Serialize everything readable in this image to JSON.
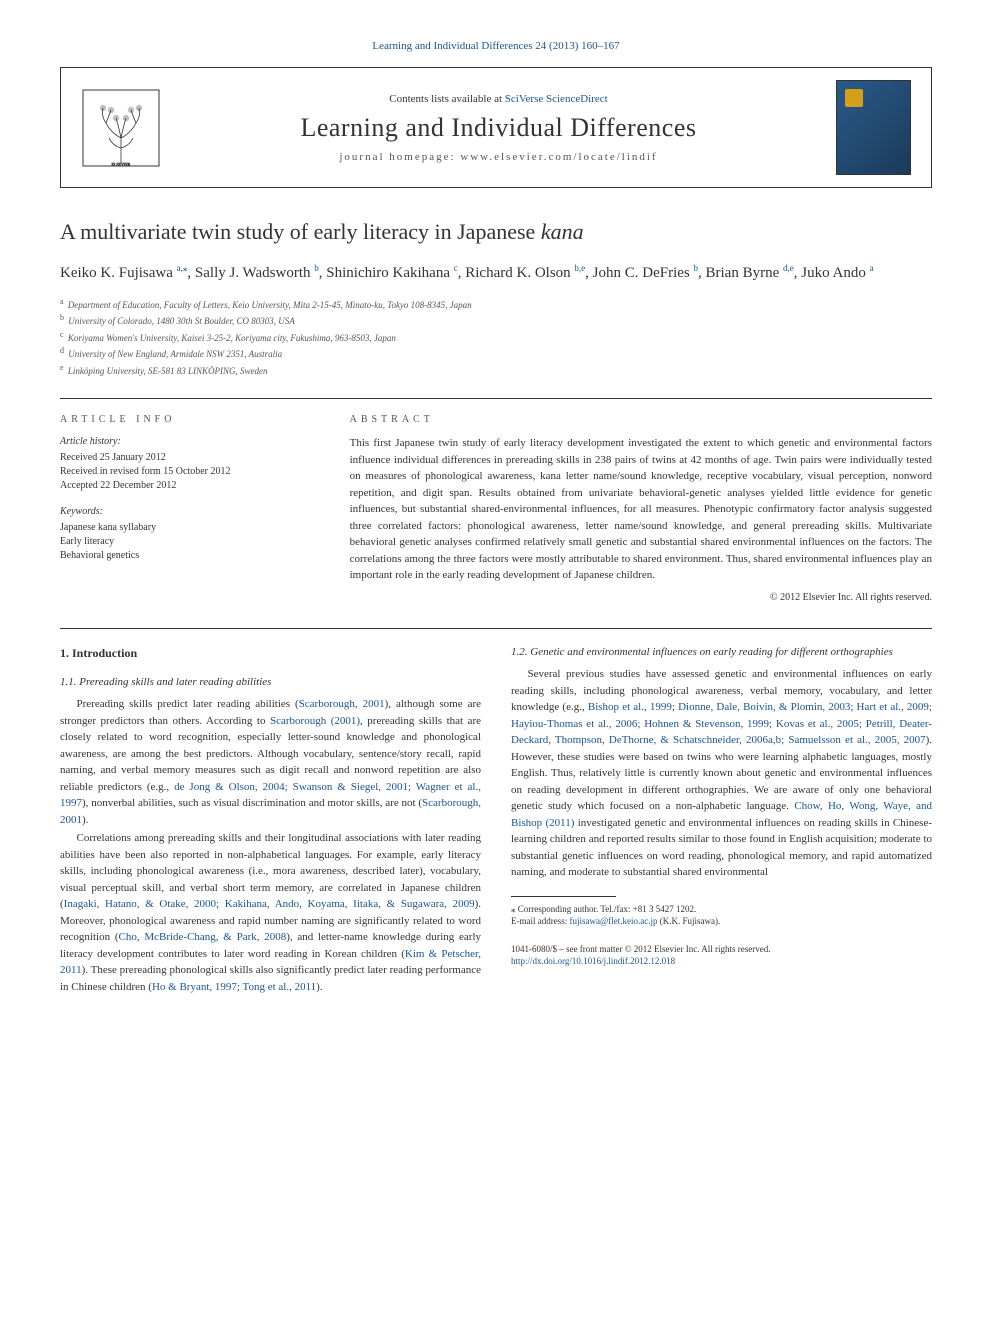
{
  "top_link": "Learning and Individual Differences 24 (2013) 160–167",
  "header": {
    "contents_line_prefix": "Contents lists available at ",
    "sd_link": "SciVerse ScienceDirect",
    "journal_name": "Learning and Individual Differences",
    "homepage_prefix": "journal homepage: ",
    "homepage_url": "www.elsevier.com/locate/lindif"
  },
  "title_prefix": "A multivariate twin study of early literacy in Japanese ",
  "title_italic": "kana",
  "authors": [
    {
      "name": "Keiko K. Fujisawa",
      "aff": "a",
      "corr": true
    },
    {
      "name": "Sally J. Wadsworth",
      "aff": "b"
    },
    {
      "name": "Shinichiro Kakihana",
      "aff": "c"
    },
    {
      "name": "Richard K. Olson",
      "aff": "b,e"
    },
    {
      "name": "John C. DeFries",
      "aff": "b"
    },
    {
      "name": "Brian Byrne",
      "aff": "d,e"
    },
    {
      "name": "Juko Ando",
      "aff": "a"
    }
  ],
  "affiliations": [
    {
      "label": "a",
      "text": "Department of Education, Faculty of Letters, Keio University, Mita 2-15-45, Minato-ku, Tokyo 108-8345, Japan"
    },
    {
      "label": "b",
      "text": "University of Colorado, 1480 30th St Boulder, CO 80303, USA"
    },
    {
      "label": "c",
      "text": "Koriyama Women's University, Kaisei 3-25-2, Koriyama city, Fukushima, 963-8503, Japan"
    },
    {
      "label": "d",
      "text": "University of New England, Armidale NSW 2351, Australia"
    },
    {
      "label": "e",
      "text": "Linköping University, SE-581 83 LINKÖPING, Sweden"
    }
  ],
  "info": {
    "heading": "ARTICLE INFO",
    "history_head": "Article history:",
    "history": [
      "Received 25 January 2012",
      "Received in revised form 15 October 2012",
      "Accepted 22 December 2012"
    ],
    "keywords_head": "Keywords:",
    "keywords": [
      "Japanese kana syllabary",
      "Early literacy",
      "Behavioral genetics"
    ]
  },
  "abstract": {
    "heading": "ABSTRACT",
    "text": "This first Japanese twin study of early literacy development investigated the extent to which genetic and environmental factors influence individual differences in prereading skills in 238 pairs of twins at 42 months of age. Twin pairs were individually tested on measures of phonological awareness, kana letter name/sound knowledge, receptive vocabulary, visual perception, nonword repetition, and digit span. Results obtained from univariate behavioral-genetic analyses yielded little evidence for genetic influences, but substantial shared-environmental influences, for all measures. Phenotypic confirmatory factor analysis suggested three correlated factors: phonological awareness, letter name/sound knowledge, and general prereading skills. Multivariate behavioral genetic analyses confirmed relatively small genetic and substantial shared environmental influences on the factors. The correlations among the three factors were mostly attributable to shared environment. Thus, shared environmental influences play an important role in the early reading development of Japanese children.",
    "copyright": "© 2012 Elsevier Inc. All rights reserved."
  },
  "body": {
    "section1": "1. Introduction",
    "sub11": "1.1. Prereading skills and later reading abilities",
    "p1a": "Prereading skills predict later reading abilities (",
    "p1_ref1": "Scarborough, 2001",
    "p1b": "), although some are stronger predictors than others. According to ",
    "p1_ref2": "Scarborough (2001)",
    "p1c": ", prereading skills that are closely related to word recognition, especially letter-sound knowledge and phonological awareness, are among the best predictors. Although vocabulary, sentence/story recall, rapid naming, and verbal memory measures such as digit recall and nonword repetition are also reliable predictors (e.g., ",
    "p1_ref3": "de Jong & Olson, 2004; Swanson & Siegel, 2001; Wagner et al., 1997",
    "p1d": "), nonverbal abilities, such as visual discrimination and motor skills, are not (",
    "p1_ref4": "Scarborough, 2001",
    "p1e": ").",
    "p2a": "Correlations among prereading skills and their longitudinal associations with later reading abilities have been also reported in non-alphabetical languages. For example, early literacy skills, including phonological awareness (i.e., mora awareness, described later), vocabulary, visual perceptual skill, and verbal short term memory, are correlated in Japanese children (",
    "p2_ref1": "Inagaki, Hatano, & Otake, 2000; Kakihana, Ando, Koyama, Iitaka, & Sugawara, 2009",
    "p2b": "). Moreover, phonological awareness and rapid number naming are significantly related to word recognition (",
    "p2_ref2": "Cho, McBride-Chang, & Park, 2008",
    "p2c": "), and letter-name knowledge during early literacy development contributes to later word reading in Korean children (",
    "p2_ref3": "Kim & Petscher, 2011",
    "p2d": "). These prereading phonological skills also significantly predict later reading performance in Chinese children (",
    "p2_ref4": "Ho & Bryant, 1997; Tong et al., 2011",
    "p2e": ").",
    "sub12": "1.2. Genetic and environmental influences on early reading for different orthographies",
    "p3a": "Several previous studies have assessed genetic and environmental influences on early reading skills, including phonological awareness, verbal memory, vocabulary, and letter knowledge (e.g., ",
    "p3_ref1": "Bishop et al., 1999; Dionne, Dale, Boivin, & Plomin, 2003; Hart et al., 2009; Hayiou-Thomas et al., 2006; Hohnen & Stevenson, 1999; Kovas et al., 2005; Petrill, Deater-Deckard, Thompson, DeThorne, & Schatschneider, 2006a,b; Samuelsson et al., 2005, 2007",
    "p3b": "). However, these studies were based on twins who were learning alphabetic languages, mostly English. Thus, relatively little is currently known about genetic and environmental influences on reading development in different orthographies. We are aware of only one behavioral genetic study which focused on a non-alphabetic language. ",
    "p3_ref2": "Chow, Ho, Wong, Waye, and Bishop (2011)",
    "p3c": " investigated genetic and environmental influences on reading skills in Chinese-learning children and reported results similar to those found in English acquisition; moderate to substantial genetic influences on word reading, phonological memory, and rapid automatized naming, and moderate to substantial shared environmental"
  },
  "footnote": {
    "corr": "⁎ Corresponding author. Tel./fax: +81 3 5427 1202.",
    "email_label": "E-mail address: ",
    "email": "fujisawa@flet.keio.ac.jp",
    "email_suffix": " (K.K. Fujisawa)."
  },
  "doi": {
    "issn": "1041-6080/$ – see front matter © 2012 Elsevier Inc. All rights reserved.",
    "url": "http://dx.doi.org/10.1016/j.lindif.2012.12.018"
  },
  "colors": {
    "link": "#1a5490",
    "text": "#333333",
    "muted": "#555555"
  }
}
